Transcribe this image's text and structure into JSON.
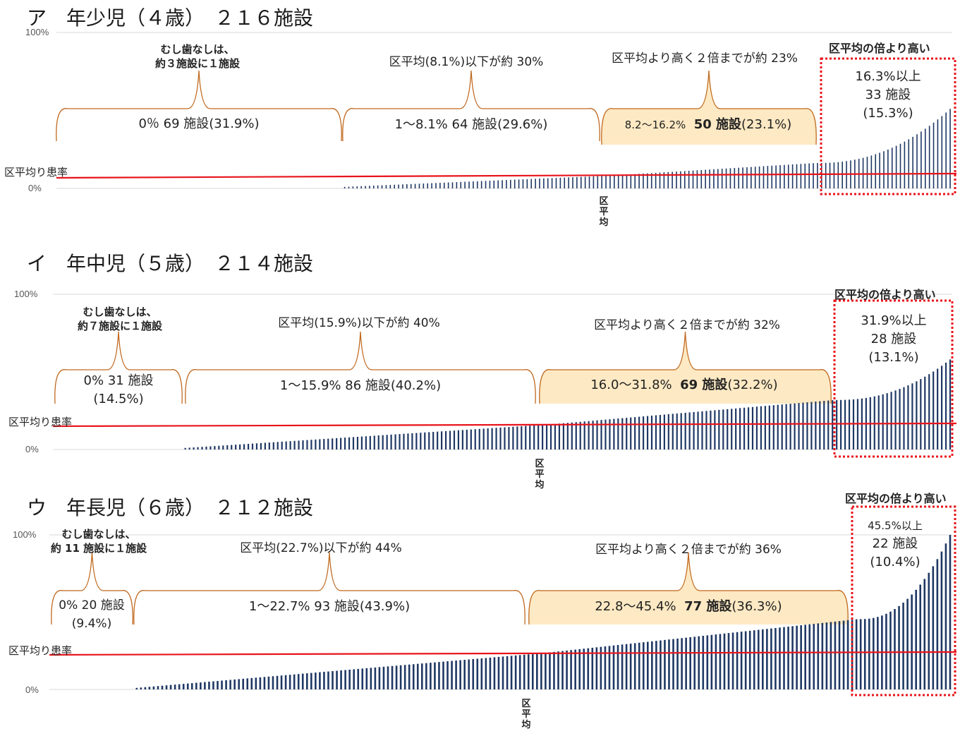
{
  "colors": {
    "bar": "#1f3864",
    "average_line": "#e8141b",
    "highlight_box": "#e8141b",
    "brace": "#c0691f",
    "fill": "#fde9c3"
  },
  "common": {
    "tick_100": "100%",
    "tick_0": "0%",
    "avg_label": "区平均り患率",
    "axis_avg_label": "区平均",
    "high_header": "区平均の倍より高い"
  },
  "chart_data": [
    {
      "type": "bar",
      "title": "ア　年少児（４歳）　２１６施設",
      "ylim": [
        0,
        100
      ],
      "average": 8.1,
      "sorted_ascending": true,
      "note_line1": "むし歯なしは、",
      "note_line2": "約３施設に１施設",
      "groups": [
        {
          "title": "",
          "text": "0％  69 施設(31.9%)",
          "count": 69,
          "range": [
            0,
            0
          ]
        },
        {
          "title": "区平均(8.1%)以下が約 30%",
          "text": "1～8.1%  64 施設(29.6%)",
          "count": 64,
          "range": [
            1,
            8.1
          ]
        },
        {
          "title": "区平均より高く２倍までが約 23%",
          "text_small": "8.2～16.2%",
          "text_bold": "50 施設",
          "text_after": "(23.1%)",
          "count": 50,
          "range": [
            8.2,
            16.2
          ]
        },
        {
          "title": "区平均の倍より高い",
          "line1": "16.3%以上",
          "line2": "33 施設",
          "line3": "(15.3%)",
          "count": 33,
          "range": [
            16.3,
            51
          ]
        }
      ]
    },
    {
      "type": "bar",
      "title": "イ　年中児（５歳）　２１４施設",
      "ylim": [
        0,
        100
      ],
      "average": 15.9,
      "sorted_ascending": true,
      "note_line1": "むし歯なしは、",
      "note_line2": "約７施設に１施設",
      "groups": [
        {
          "title": "",
          "text_line1": "0% 31 施設",
          "text_line2": "(14.5%)",
          "count": 31,
          "range": [
            0,
            0
          ]
        },
        {
          "title": "区平均(15.9%)以下が約 40%",
          "text": "1～15.9%  86 施設(40.2%)",
          "count": 86,
          "range": [
            1,
            15.9
          ]
        },
        {
          "title": "区平均より高く２倍までが約 32%",
          "text_small": "16.0～31.8%",
          "text_bold": "69 施設",
          "text_after": "(32.2%)",
          "count": 69,
          "range": [
            16.0,
            31.8
          ]
        },
        {
          "title": "区平均の倍より高い",
          "line1": "31.9%以上",
          "line2": "28 施設",
          "line3": "(13.1%)",
          "count": 28,
          "range": [
            31.9,
            58
          ]
        }
      ]
    },
    {
      "type": "bar",
      "title": "ウ　年長児（６歳）　２１２施設",
      "ylim": [
        0,
        100
      ],
      "average": 22.7,
      "sorted_ascending": true,
      "note_line1": "むし歯なしは、",
      "note_line2": "約 11 施設に１施設",
      "groups": [
        {
          "title": "",
          "text_line1": "0% 20 施設",
          "text_line2": "(9.4%)",
          "count": 20,
          "range": [
            0,
            0
          ]
        },
        {
          "title": "区平均(22.7%)以下が約 44%",
          "text": "1～22.7%  93 施設(43.9%)",
          "count": 93,
          "range": [
            1,
            22.7
          ]
        },
        {
          "title": "区平均より高く２倍までが約 36%",
          "text_small": "22.8～45.4%",
          "text_bold": "77 施設",
          "text_after": "(36.3%)",
          "count": 77,
          "range": [
            22.8,
            45.4
          ]
        },
        {
          "title": "区平均の倍より高い",
          "line1": "45.5%以上",
          "line2": "22 施設",
          "line3": "(10.4%)",
          "count": 22,
          "range": [
            45.5,
            100
          ]
        }
      ]
    }
  ]
}
